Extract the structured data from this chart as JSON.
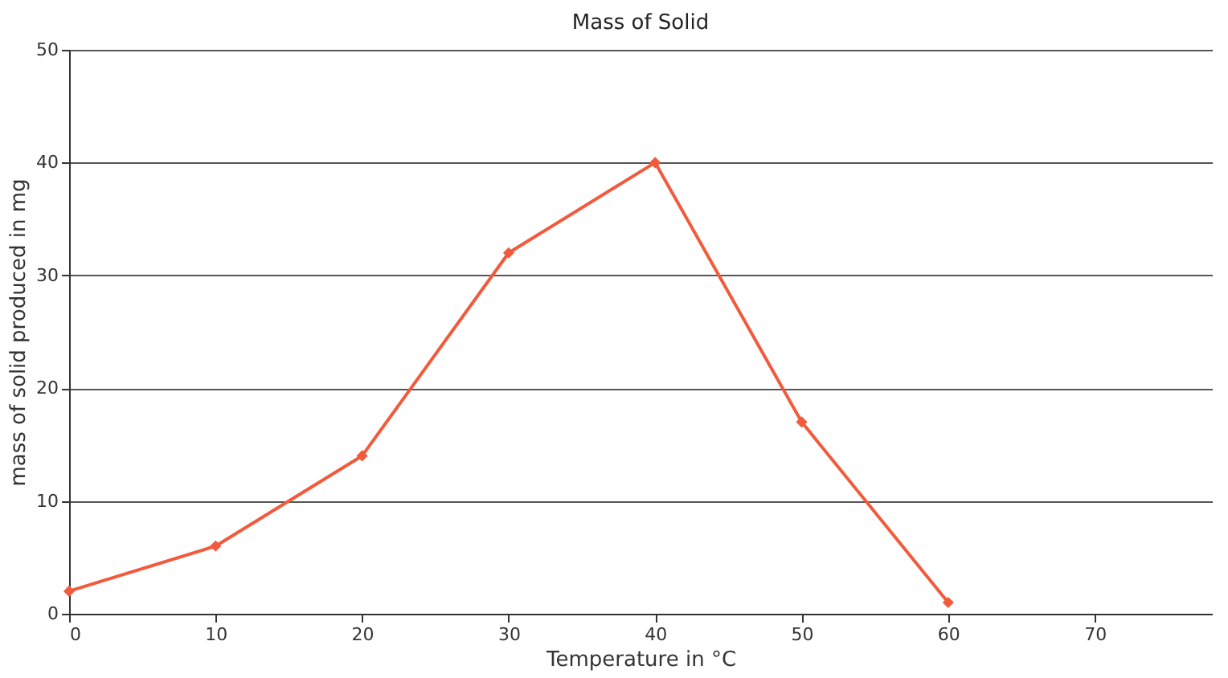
{
  "chart_data": {
    "type": "line",
    "title": "Mass of Solid",
    "xlabel": "Temperature in °C",
    "ylabel": "mass of solid produced in mg",
    "x": [
      0,
      10,
      20,
      30,
      40,
      50,
      60
    ],
    "series": [
      {
        "color": "#f25a3c",
        "values": [
          2,
          6,
          14,
          32,
          40,
          17,
          1
        ]
      }
    ],
    "xlim": [
      0,
      78
    ],
    "xticks": [
      0,
      10,
      20,
      30,
      40,
      50,
      60,
      70
    ],
    "ylim": [
      0,
      50
    ],
    "yticks": [
      0,
      10,
      20,
      30,
      40,
      50
    ],
    "grid": "y",
    "marker": "diamond",
    "line_style": "solid"
  }
}
